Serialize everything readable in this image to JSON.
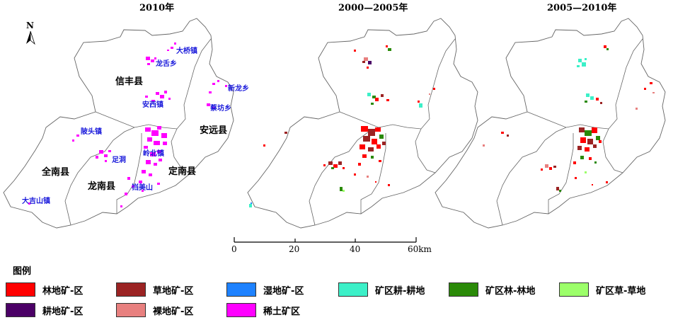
{
  "panels": [
    {
      "title": "2010年"
    },
    {
      "title": "2000—2005年"
    },
    {
      "title": "2005—2010年"
    }
  ],
  "north_label": "N",
  "counties": {
    "xinfeng": "信丰县",
    "anyuan": "安远县",
    "quannan": "全南县",
    "longnan": "龙南县",
    "dingnan": "定南县"
  },
  "towns": {
    "daqiao": "大桥镇",
    "longshe": "龙舌乡",
    "xinlong": "新龙乡",
    "caifang": "蔡坊乡",
    "anxi": "安西镇",
    "pitou": "陂头镇",
    "zudong": "足洞",
    "lingbei": "岭北镇",
    "kuimei": "岿美山",
    "dajishan": "大吉山镇"
  },
  "scale": {
    "ticks": [
      "0",
      "20",
      "40",
      "60km"
    ]
  },
  "legend": {
    "title": "图例",
    "items": [
      {
        "label": "林地矿-区",
        "color": "#ff0000"
      },
      {
        "label": "草地矿-区",
        "color": "#9b2323"
      },
      {
        "label": "湿地矿-区",
        "color": "#1e82ff"
      },
      {
        "label": "矿区耕-耕地",
        "color": "#3cf0c8"
      },
      {
        "label": "矿区林-林地",
        "color": "#2a8a08"
      },
      {
        "label": "矿区草-草地",
        "color": "#9cff6a"
      },
      {
        "label": "耕地矿-区",
        "color": "#4b0066"
      },
      {
        "label": "裸地矿-区",
        "color": "#e8807f"
      },
      {
        "label": "稀土矿区",
        "color": "#ff00ff"
      }
    ]
  }
}
